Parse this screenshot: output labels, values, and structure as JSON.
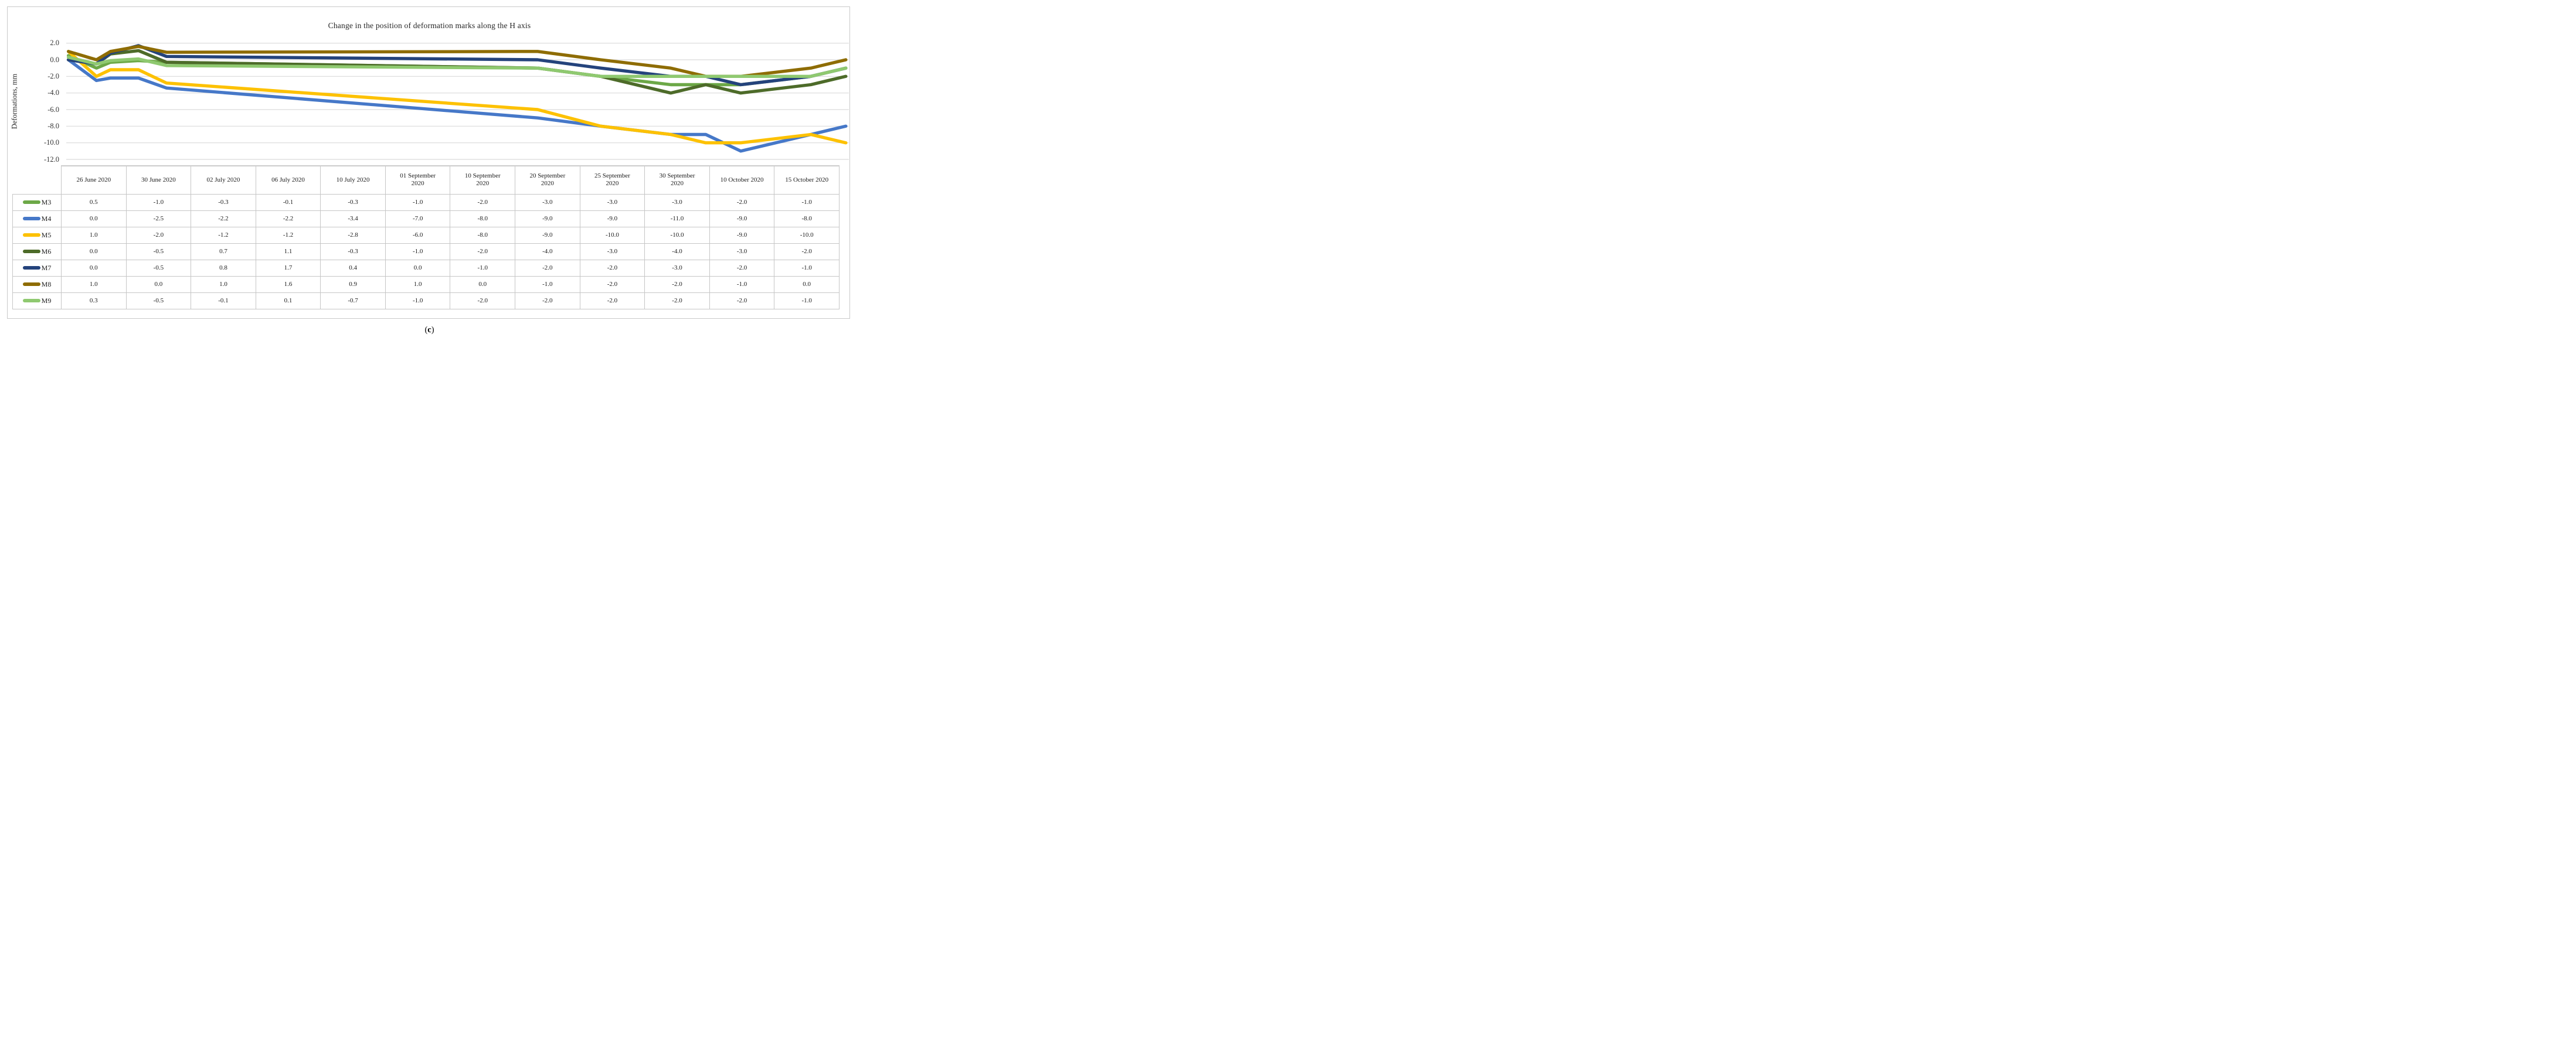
{
  "figure": {
    "caption_prefix": "(",
    "caption_letter": "c",
    "caption_suffix": ")"
  },
  "chart_data": {
    "type": "line",
    "title": "Change in the position of deformation marks along the H axis",
    "xlabel": "",
    "ylabel": "Deformations, mm",
    "ylim": [
      -12,
      2
    ],
    "ytick_step": 2,
    "yticks": [
      "2.0",
      "0.0",
      "-2.0",
      "-4.0",
      "-6.0",
      "-8.0",
      "-10.0",
      "-12.0"
    ],
    "grid": true,
    "gridline_color": "#d9d9d9",
    "x_axis_type": "date",
    "categories": [
      "26 June 2020",
      "30 June 2020",
      "02 July 2020",
      "06 July 2020",
      "10 July 2020",
      "01 September 2020",
      "10 September 2020",
      "20 September 2020",
      "25 September 2020",
      "30 September 2020",
      "10 October 2020",
      "15 October 2020"
    ],
    "day_offsets": [
      0,
      4,
      6,
      10,
      14,
      67,
      76,
      86,
      91,
      96,
      106,
      111
    ],
    "legend_position": "data-table-left",
    "value_format": "0.0",
    "series": [
      {
        "name": "M3",
        "color": "#6CA847",
        "values": [
          0.5,
          -1.0,
          -0.3,
          -0.1,
          -0.3,
          -1.0,
          -2.0,
          -3.0,
          -3.0,
          -3.0,
          -2.0,
          -1.0
        ]
      },
      {
        "name": "M4",
        "color": "#4678C8",
        "values": [
          0.0,
          -2.5,
          -2.2,
          -2.2,
          -3.4,
          -7.0,
          -8.0,
          -9.0,
          -9.0,
          -11.0,
          -9.0,
          -8.0
        ]
      },
      {
        "name": "M5",
        "color": "#FDC101",
        "values": [
          1.0,
          -2.0,
          -1.2,
          -1.2,
          -2.8,
          -6.0,
          -8.0,
          -9.0,
          -10.0,
          -10.0,
          -9.0,
          -10.0
        ]
      },
      {
        "name": "M6",
        "color": "#4D6B29",
        "values": [
          0.0,
          -0.5,
          0.7,
          1.1,
          -0.3,
          -1.0,
          -2.0,
          -4.0,
          -3.0,
          -4.0,
          -3.0,
          -2.0
        ]
      },
      {
        "name": "M7",
        "color": "#24437C",
        "values": [
          0.0,
          -0.5,
          0.8,
          1.7,
          0.4,
          0.0,
          -1.0,
          -2.0,
          -2.0,
          -3.0,
          -2.0,
          -1.0
        ]
      },
      {
        "name": "M8",
        "color": "#8E6C02",
        "values": [
          1.0,
          0.0,
          1.0,
          1.6,
          0.9,
          1.0,
          0.0,
          -1.0,
          -2.0,
          -2.0,
          -1.0,
          0.0
        ]
      },
      {
        "name": "M9",
        "color": "#8FC970",
        "values": [
          0.3,
          -0.5,
          -0.1,
          0.1,
          -0.7,
          -1.0,
          -2.0,
          -2.0,
          -2.0,
          -2.0,
          -2.0,
          -1.0
        ]
      }
    ]
  }
}
